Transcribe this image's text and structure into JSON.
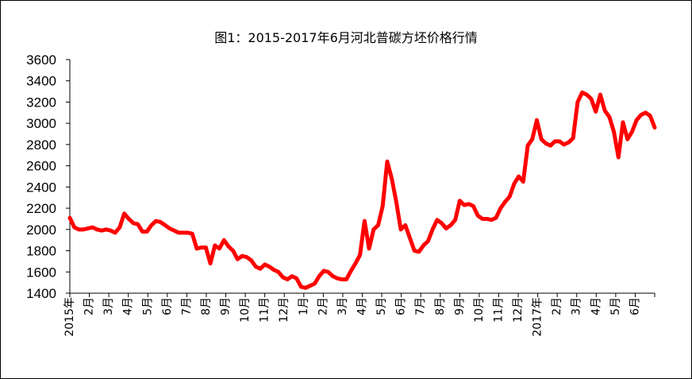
{
  "chart_data": {
    "type": "line",
    "title": "图1：2015-2017年6月河北普碳方坯价格行情",
    "xlabel": "",
    "ylabel": "",
    "ylim": [
      1400,
      3600
    ],
    "ytick_step": 200,
    "grid": false,
    "legend": "none",
    "line_color": "#ff0000",
    "xtick_labels": [
      "2015年",
      "2月",
      "3月",
      "4月",
      "5月",
      "6月",
      "7月",
      "8月",
      "9月",
      "10月",
      "11月",
      "12月",
      "1月",
      "2月",
      "3月",
      "4月",
      "5月",
      "6月",
      "7月",
      "8月",
      "9月",
      "10月",
      "11月",
      "12月",
      "2017年",
      "2月",
      "3月",
      "4月",
      "5月",
      "6月"
    ],
    "series": [
      {
        "values": [
          2110,
          2020,
          2000,
          2000,
          2010,
          2020,
          2000,
          1990,
          2000,
          1990,
          1970,
          2020,
          2150,
          2100,
          2060,
          2050,
          1980,
          1980,
          2040,
          2080,
          2070,
          2040,
          2010,
          1990,
          1970,
          1970,
          1970,
          1960,
          1820,
          1830,
          1830,
          1680,
          1850,
          1820,
          1900,
          1840,
          1800,
          1720,
          1750,
          1740,
          1710,
          1650,
          1630,
          1670,
          1650,
          1620,
          1600,
          1550,
          1530,
          1560,
          1540,
          1460,
          1450,
          1470,
          1490,
          1560,
          1610,
          1600,
          1560,
          1540,
          1530,
          1530,
          1610,
          1680,
          1760,
          2080,
          1820,
          2000,
          2040,
          2220,
          2640,
          2480,
          2260,
          2000,
          2040,
          1920,
          1800,
          1790,
          1850,
          1890,
          2000,
          2090,
          2060,
          2010,
          2040,
          2090,
          2270,
          2230,
          2240,
          2220,
          2130,
          2100,
          2100,
          2090,
          2110,
          2200,
          2260,
          2310,
          2430,
          2500,
          2450,
          2790,
          2850,
          3030,
          2850,
          2810,
          2790,
          2830,
          2830,
          2800,
          2820,
          2860,
          3200,
          3290,
          3270,
          3230,
          3110,
          3270,
          3120,
          3060,
          2920,
          2680,
          3010,
          2850,
          2920,
          3030,
          3080,
          3100,
          3070,
          2960
        ]
      }
    ]
  }
}
